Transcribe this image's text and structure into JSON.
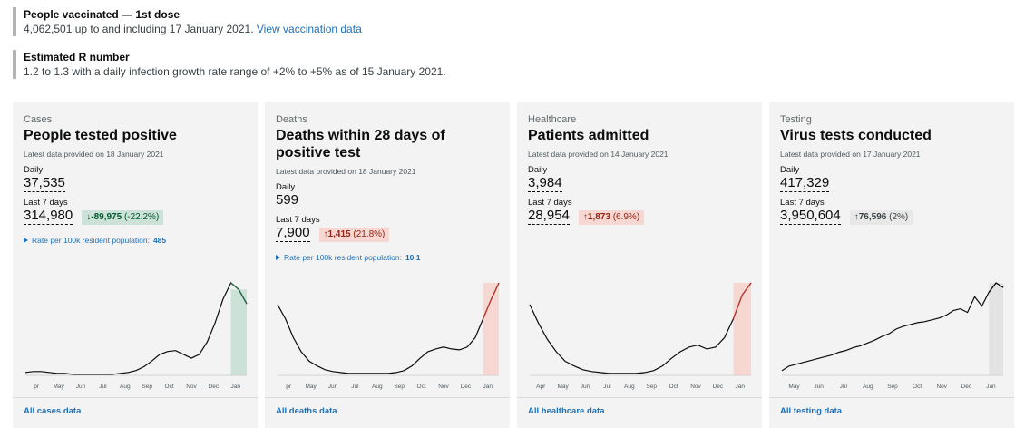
{
  "header": {
    "items": [
      {
        "title": "People vaccinated — 1st dose",
        "text": "4,062,501 up to and including 17 January 2021.",
        "link": "View vaccination data"
      },
      {
        "title": "Estimated R number",
        "text": "1.2 to 1.3 with a daily infection growth rate range of +2% to +5% as of 15 January 2021."
      }
    ]
  },
  "cards": [
    {
      "category": "Cases",
      "title": "People tested positive",
      "updated": "Latest data provided on 18 January 2021",
      "daily_label": "Daily",
      "daily": "37,535",
      "week_label": "Last 7 days",
      "week": "314,980",
      "direction": "↓",
      "change": "-89,975",
      "change_pct": "(-22.2%)",
      "change_kind": "down",
      "rate_label": "Rate per 100k resident population:",
      "rate": "485",
      "months": [
        "pr",
        "May",
        "Jun",
        "Jul",
        "Aug",
        "Sep",
        "Oct",
        "Nov",
        "Dec",
        "Jan"
      ],
      "trend": [
        3,
        4,
        4,
        3,
        2,
        2,
        1,
        1,
        1,
        1,
        1,
        1,
        2,
        3,
        5,
        9,
        15,
        22,
        25,
        26,
        22,
        18,
        22,
        35,
        55,
        80,
        97,
        90,
        75
      ],
      "link": "All cases data"
    },
    {
      "category": "Deaths",
      "title": "Deaths within 28 days of positive test",
      "updated": "Latest data provided on 18 January 2021",
      "daily_label": "Daily",
      "daily": "599",
      "week_label": "Last 7 days",
      "week": "7,900",
      "direction": "↑",
      "change": "1,415",
      "change_pct": "(21.8%)",
      "change_kind": "up",
      "rate_label": "Rate per 100k resident population:",
      "rate": "10.1",
      "months": [
        "pr",
        "May",
        "Jun",
        "Jul",
        "Aug",
        "Sep",
        "Oct",
        "Nov",
        "Dec",
        "Jan"
      ],
      "trend": [
        75,
        60,
        40,
        25,
        15,
        10,
        6,
        4,
        3,
        2,
        2,
        2,
        2,
        2,
        2,
        3,
        5,
        10,
        18,
        25,
        28,
        30,
        28,
        27,
        30,
        40,
        60,
        80,
        98
      ],
      "link": "All deaths data"
    },
    {
      "category": "Healthcare",
      "title": "Patients admitted",
      "updated": "Latest data provided on 14 January 2021",
      "daily_label": "Daily",
      "daily": "3,984",
      "week_label": "Last 7 days",
      "week": "28,954",
      "direction": "↑",
      "change": "1,873",
      "change_pct": "(6.9%)",
      "change_kind": "up",
      "months": [
        "Apr",
        "May",
        "Jun",
        "Jul",
        "Aug",
        "Sep",
        "Oct",
        "Nov",
        "Dec",
        "Jan"
      ],
      "trend": [
        75,
        55,
        38,
        25,
        15,
        10,
        6,
        4,
        3,
        2,
        2,
        2,
        2,
        3,
        5,
        10,
        18,
        25,
        30,
        32,
        28,
        30,
        40,
        60,
        85,
        98
      ],
      "link": "All healthcare data"
    },
    {
      "category": "Testing",
      "title": "Virus tests conducted",
      "updated": "Latest data provided on 17 January 2021",
      "daily_label": "Daily",
      "daily": "417,329",
      "week_label": "Last 7 days",
      "week": "3,950,604",
      "direction": "↑",
      "change": "76,596",
      "change_pct": "(2%)",
      "change_kind": "neutral",
      "months": [
        "May",
        "Jun",
        "Jul",
        "Aug",
        "Sep",
        "Oct",
        "Nov",
        "Dec",
        "Jan"
      ],
      "trend": [
        5,
        10,
        12,
        14,
        16,
        18,
        20,
        22,
        25,
        27,
        30,
        32,
        35,
        38,
        42,
        45,
        50,
        53,
        55,
        57,
        58,
        60,
        62,
        65,
        70,
        72,
        68,
        85,
        75,
        90,
        100,
        95
      ],
      "link": "All testing data"
    }
  ]
}
